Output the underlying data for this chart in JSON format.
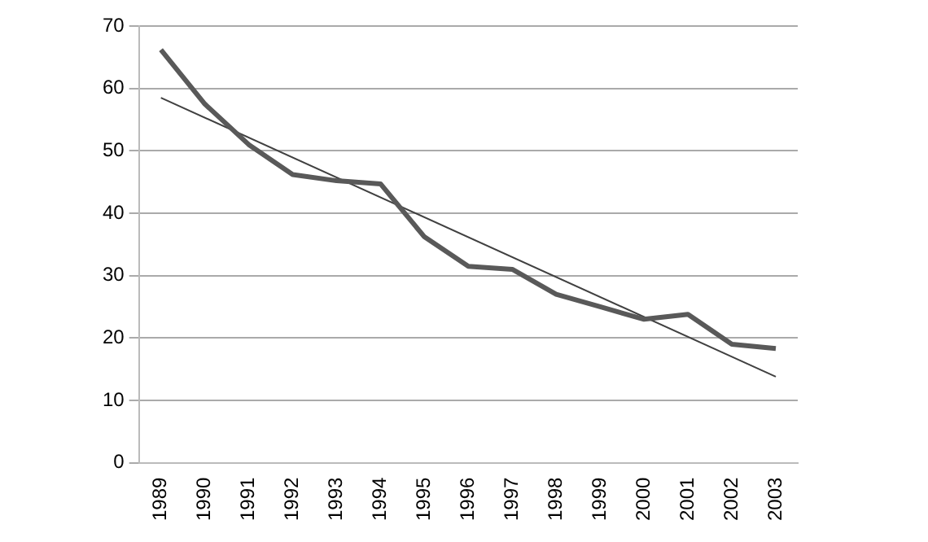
{
  "chart_data": {
    "type": "line",
    "categories": [
      "1989",
      "1990",
      "1991",
      "1992",
      "1993",
      "1994",
      "1995",
      "1996",
      "1997",
      "1998",
      "1999",
      "2000",
      "2001",
      "2002",
      "2003"
    ],
    "series": [
      {
        "color": "#595959",
        "values": [
          66.2,
          57.5,
          51,
          46.2,
          45.2,
          44.7,
          36.2,
          31.5,
          31,
          27,
          25,
          23,
          23.8,
          19,
          18.3
        ]
      },
      {
        "type": "line",
        "color": "#404040",
        "values": [
          58.5,
          null,
          null,
          null,
          null,
          null,
          null,
          null,
          null,
          null,
          null,
          null,
          null,
          null,
          13.8
        ]
      }
    ],
    "ylim": [
      0,
      70
    ],
    "yticks": [
      0,
      10,
      20,
      30,
      40,
      50,
      60,
      70
    ],
    "grid": "y",
    "legend": false,
    "marker": "none"
  }
}
